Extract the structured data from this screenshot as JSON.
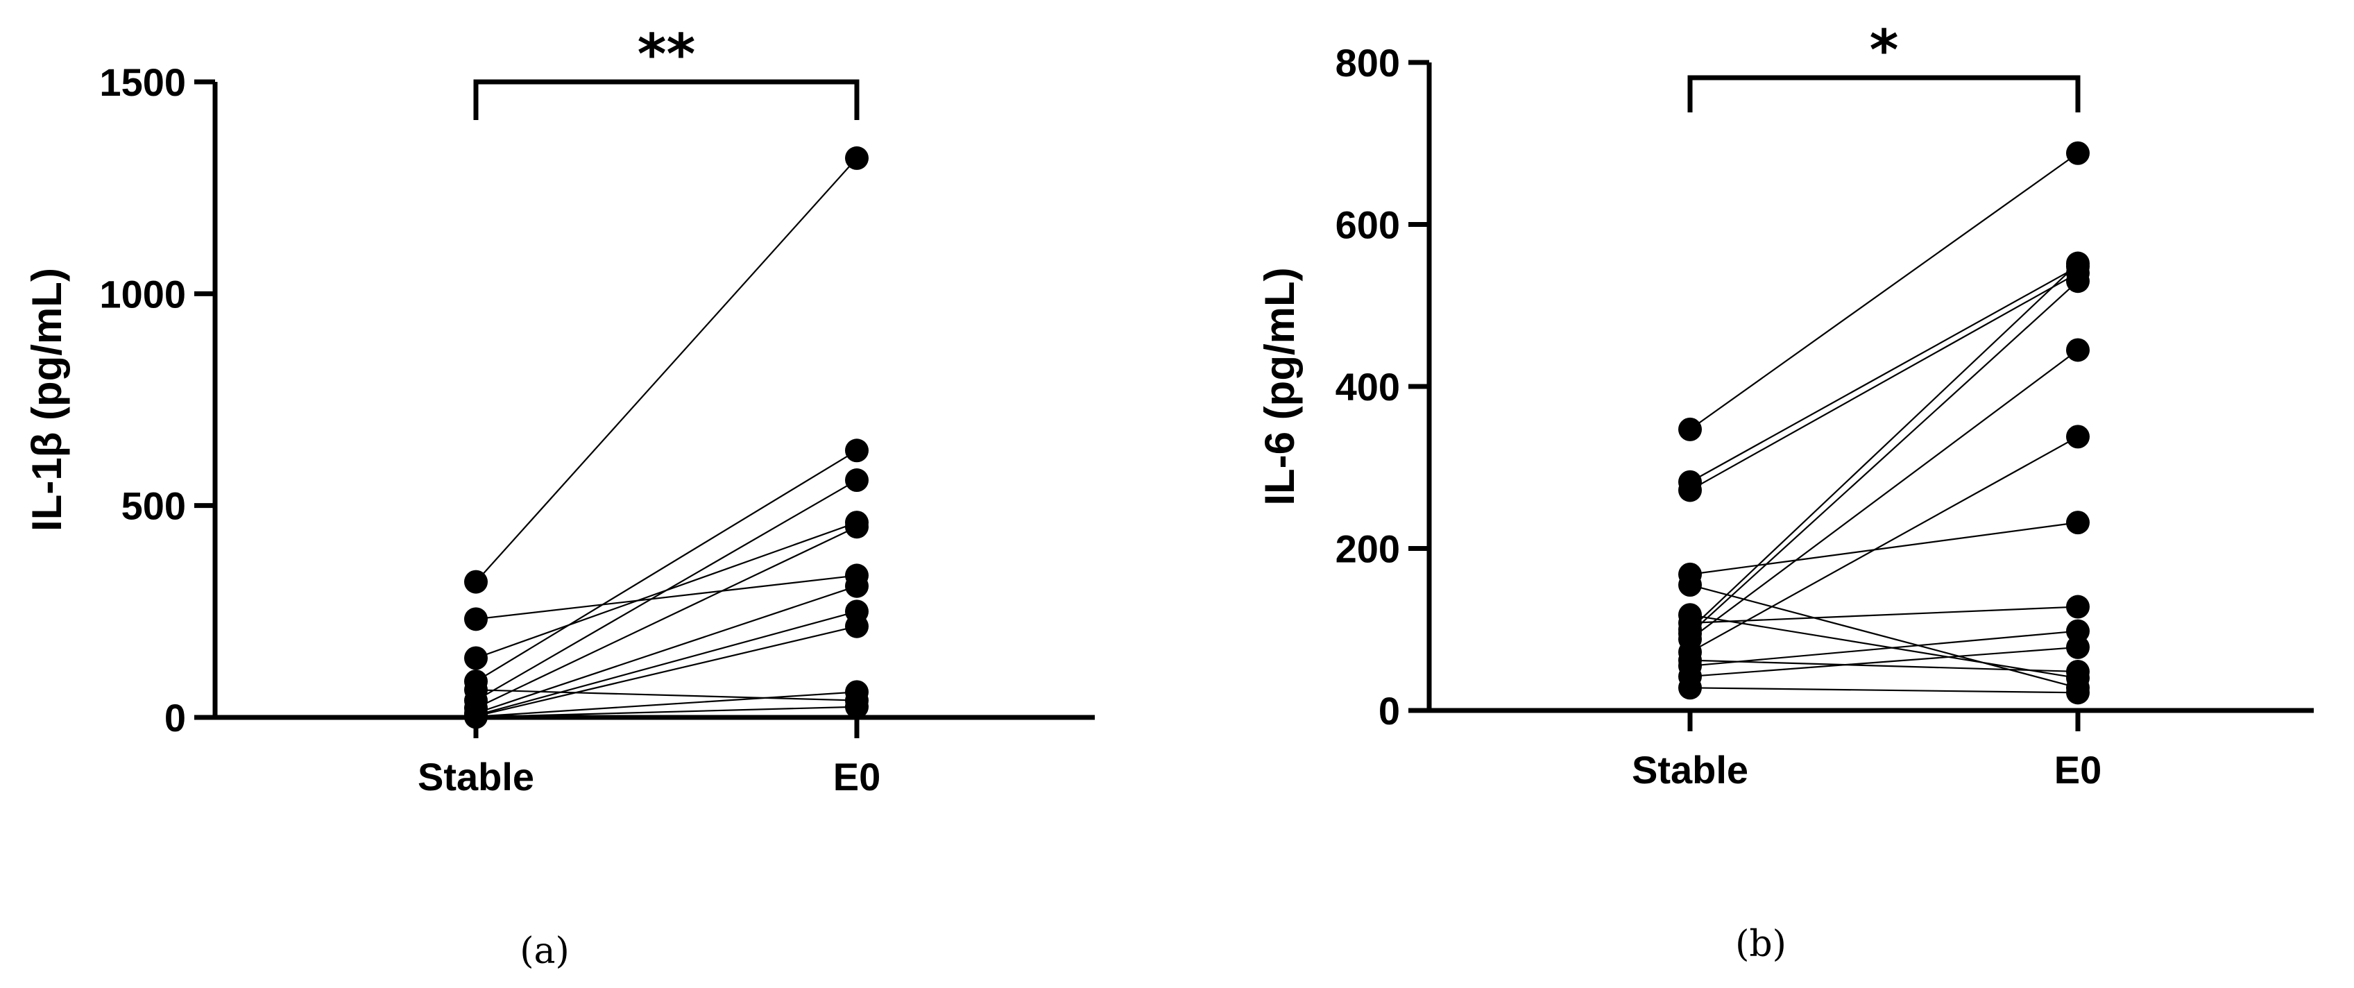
{
  "chart_data": [
    {
      "type": "scatter",
      "subtype": "paired-dot-plot",
      "panel_label": "(a)",
      "ylabel": "IL-1β (pg/mL)",
      "categories": [
        "Stable",
        "E0"
      ],
      "ylim": [
        0,
        1500
      ],
      "yticks": [
        0,
        500,
        1000,
        1500
      ],
      "grid": false,
      "significance": "**",
      "pairs": [
        [
          320,
          1320
        ],
        [
          232,
          335
        ],
        [
          140,
          460
        ],
        [
          85,
          630
        ],
        [
          65,
          40
        ],
        [
          40,
          560
        ],
        [
          22,
          450
        ],
        [
          10,
          310
        ],
        [
          5,
          250
        ],
        [
          3,
          215
        ],
        [
          2,
          60
        ],
        [
          1,
          25
        ]
      ]
    },
    {
      "type": "scatter",
      "subtype": "paired-dot-plot",
      "panel_label": "(b)",
      "ylabel": "IL-6 (pg/mL)",
      "categories": [
        "Stable",
        "E0"
      ],
      "ylim": [
        0,
        800
      ],
      "yticks": [
        0,
        200,
        400,
        600,
        800
      ],
      "grid": false,
      "significance": "*",
      "pairs": [
        [
          347,
          688
        ],
        [
          282,
          548
        ],
        [
          272,
          540
        ],
        [
          168,
          232
        ],
        [
          155,
          28
        ],
        [
          118,
          40
        ],
        [
          108,
          128
        ],
        [
          100,
          552
        ],
        [
          95,
          530
        ],
        [
          88,
          445
        ],
        [
          72,
          338
        ],
        [
          62,
          48
        ],
        [
          55,
          98
        ],
        [
          42,
          78
        ],
        [
          28,
          22
        ]
      ]
    }
  ]
}
